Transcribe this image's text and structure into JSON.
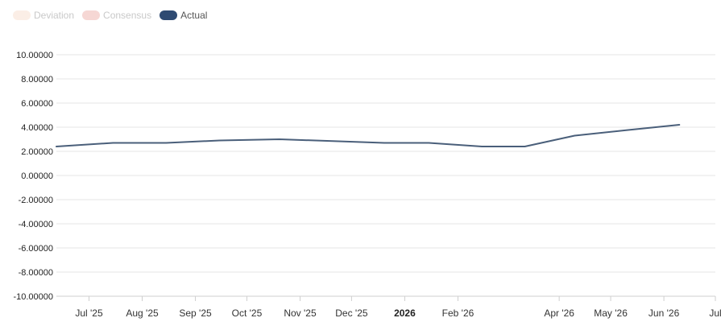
{
  "legend": [
    {
      "label": "Deviation",
      "color": "#fbeee6",
      "text_color": "#c9c9c9",
      "icon": "legend-swatch"
    },
    {
      "label": "Consensus",
      "color": "#f6d7d4",
      "text_color": "#c9c9c9",
      "icon": "legend-swatch"
    },
    {
      "label": "Actual",
      "color": "#2e4a72",
      "text_color": "#555555",
      "icon": "legend-swatch"
    }
  ],
  "chart_data": {
    "type": "line",
    "title": "",
    "xlabel": "",
    "ylabel": "",
    "ylim": [
      -10,
      10
    ],
    "yticks": [
      "10.00000",
      "8.00000",
      "6.00000",
      "4.00000",
      "2.00000",
      "0.00000",
      "-2.00000",
      "-4.00000",
      "-6.00000",
      "-8.00000",
      "-10.00000"
    ],
    "xticks": [
      {
        "label": "Jul '25",
        "date": "2025-07-01",
        "bold": false
      },
      {
        "label": "Aug '25",
        "date": "2025-08-01",
        "bold": false
      },
      {
        "label": "Sep '25",
        "date": "2025-09-01",
        "bold": false
      },
      {
        "label": "Oct '25",
        "date": "2025-10-01",
        "bold": false
      },
      {
        "label": "Nov '25",
        "date": "2025-11-01",
        "bold": false
      },
      {
        "label": "Dec '25",
        "date": "2025-12-01",
        "bold": false
      },
      {
        "label": "2026",
        "date": "2026-01-01",
        "bold": true
      },
      {
        "label": "Feb '26",
        "date": "2026-02-01",
        "bold": false
      },
      {
        "label": "Apr '26",
        "date": "2026-04-01",
        "bold": false
      },
      {
        "label": "May '26",
        "date": "2026-05-01",
        "bold": false
      },
      {
        "label": "Jun '26",
        "date": "2026-06-01",
        "bold": false
      },
      {
        "label": "Jul",
        "date": "2026-07-01",
        "bold": false
      }
    ],
    "xlim": [
      "2025-06-12",
      "2026-07-01"
    ],
    "series": [
      {
        "name": "Actual",
        "color": "#4a5f7a",
        "points": [
          {
            "x": "2025-06-12",
            "y": 2.4
          },
          {
            "x": "2025-07-15",
            "y": 2.7
          },
          {
            "x": "2025-08-15",
            "y": 2.7
          },
          {
            "x": "2025-09-15",
            "y": 2.9
          },
          {
            "x": "2025-10-20",
            "y": 3.0
          },
          {
            "x": "2025-11-20",
            "y": 2.85
          },
          {
            "x": "2025-12-20",
            "y": 2.7
          },
          {
            "x": "2026-01-15",
            "y": 2.7
          },
          {
            "x": "2026-02-15",
            "y": 2.4
          },
          {
            "x": "2026-03-12",
            "y": 2.4
          },
          {
            "x": "2026-04-10",
            "y": 3.3
          },
          {
            "x": "2026-05-10",
            "y": 3.75
          },
          {
            "x": "2026-06-10",
            "y": 4.2
          }
        ]
      }
    ],
    "grid": true,
    "legend_position": "top-left"
  }
}
